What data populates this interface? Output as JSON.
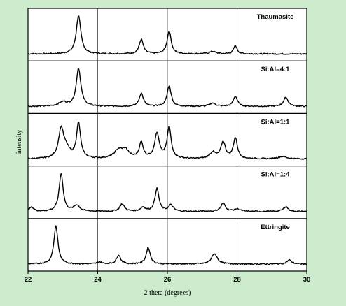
{
  "chart_data": {
    "type": "line",
    "xlabel": "2 theta (degrees)",
    "ylabel": "intensity",
    "xlim": [
      22,
      30
    ],
    "xticks": [
      22,
      24,
      26,
      28,
      30
    ],
    "xtick_labels": [
      "22",
      "24",
      "26",
      "28",
      "30"
    ],
    "vertical_gridlines_at": [
      24,
      26,
      28
    ],
    "series": [
      {
        "name": "Thaumasite",
        "peaks": [
          {
            "x": 23.45,
            "h": 0.92,
            "w": 0.08
          },
          {
            "x": 25.25,
            "h": 0.35,
            "w": 0.07
          },
          {
            "x": 26.05,
            "h": 0.55,
            "w": 0.07
          },
          {
            "x": 27.3,
            "h": 0.06,
            "w": 0.1
          },
          {
            "x": 27.95,
            "h": 0.2,
            "w": 0.06
          }
        ]
      },
      {
        "name": "Si:Al=4:1",
        "peaks": [
          {
            "x": 23.0,
            "h": 0.1,
            "w": 0.15
          },
          {
            "x": 23.45,
            "h": 0.92,
            "w": 0.08
          },
          {
            "x": 25.25,
            "h": 0.32,
            "w": 0.07
          },
          {
            "x": 26.05,
            "h": 0.5,
            "w": 0.07
          },
          {
            "x": 27.3,
            "h": 0.08,
            "w": 0.1
          },
          {
            "x": 27.95,
            "h": 0.25,
            "w": 0.07
          },
          {
            "x": 29.4,
            "h": 0.22,
            "w": 0.08
          }
        ]
      },
      {
        "name": "Si:Al=1:1",
        "peaks": [
          {
            "x": 22.95,
            "h": 0.7,
            "w": 0.09
          },
          {
            "x": 23.1,
            "h": 0.2,
            "w": 0.12
          },
          {
            "x": 23.45,
            "h": 0.85,
            "w": 0.07
          },
          {
            "x": 24.6,
            "h": 0.2,
            "w": 0.15
          },
          {
            "x": 24.8,
            "h": 0.18,
            "w": 0.12
          },
          {
            "x": 25.25,
            "h": 0.38,
            "w": 0.07
          },
          {
            "x": 25.7,
            "h": 0.6,
            "w": 0.08
          },
          {
            "x": 26.05,
            "h": 0.75,
            "w": 0.07
          },
          {
            "x": 27.3,
            "h": 0.15,
            "w": 0.1
          },
          {
            "x": 27.6,
            "h": 0.4,
            "w": 0.08
          },
          {
            "x": 27.95,
            "h": 0.5,
            "w": 0.07
          },
          {
            "x": 29.3,
            "h": 0.06,
            "w": 0.15
          }
        ]
      },
      {
        "name": "Si:Al=1:4",
        "peaks": [
          {
            "x": 22.1,
            "h": 0.1,
            "w": 0.08
          },
          {
            "x": 22.95,
            "h": 0.92,
            "w": 0.07
          },
          {
            "x": 23.4,
            "h": 0.15,
            "w": 0.1
          },
          {
            "x": 24.7,
            "h": 0.18,
            "w": 0.08
          },
          {
            "x": 25.3,
            "h": 0.1,
            "w": 0.08
          },
          {
            "x": 25.7,
            "h": 0.55,
            "w": 0.07
          },
          {
            "x": 26.1,
            "h": 0.15,
            "w": 0.08
          },
          {
            "x": 27.6,
            "h": 0.2,
            "w": 0.08
          },
          {
            "x": 28.0,
            "h": 0.06,
            "w": 0.1
          },
          {
            "x": 29.4,
            "h": 0.12,
            "w": 0.08
          }
        ]
      },
      {
        "name": "Ettringite",
        "peaks": [
          {
            "x": 22.8,
            "h": 0.92,
            "w": 0.07
          },
          {
            "x": 24.05,
            "h": 0.05,
            "w": 0.08
          },
          {
            "x": 24.6,
            "h": 0.22,
            "w": 0.07
          },
          {
            "x": 25.45,
            "h": 0.4,
            "w": 0.07
          },
          {
            "x": 27.35,
            "h": 0.25,
            "w": 0.1
          },
          {
            "x": 29.5,
            "h": 0.1,
            "w": 0.08
          }
        ]
      }
    ]
  }
}
